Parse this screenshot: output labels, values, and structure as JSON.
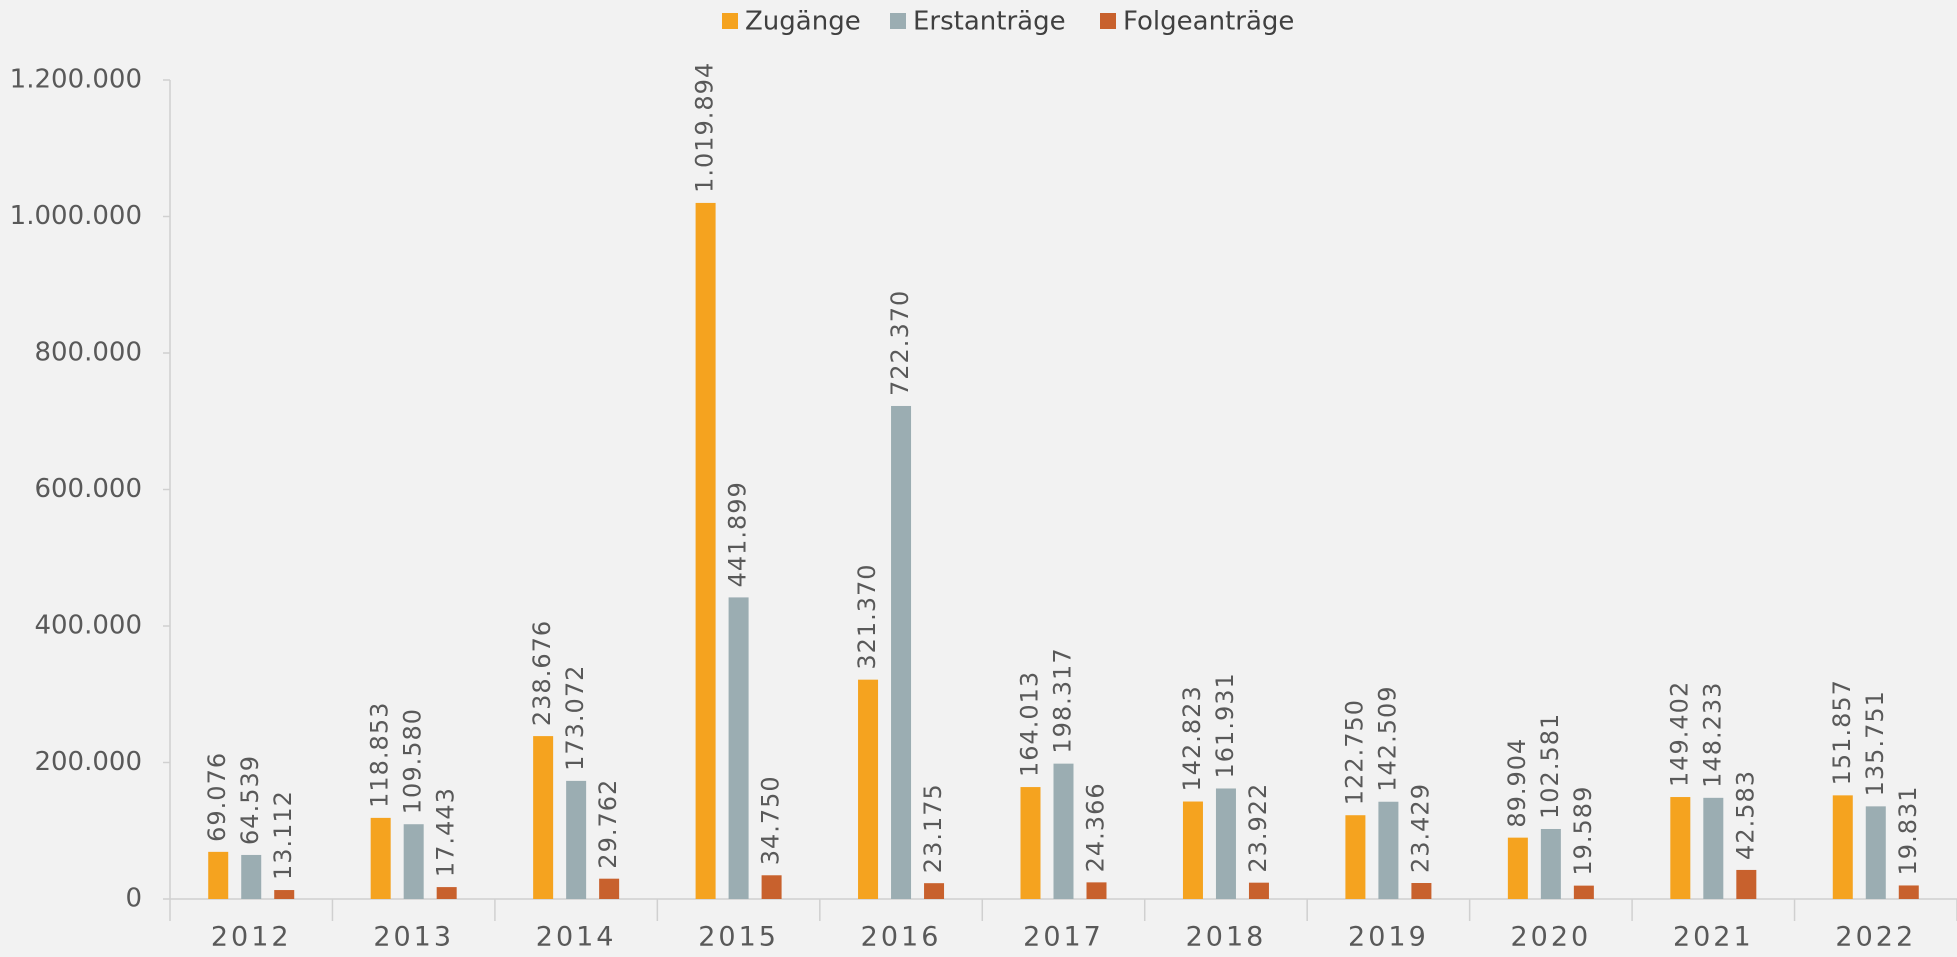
{
  "chart_data": {
    "type": "bar",
    "categories": [
      "2012",
      "2013",
      "2014",
      "2015",
      "2016",
      "2017",
      "2018",
      "2019",
      "2020",
      "2021",
      "2022"
    ],
    "series": [
      {
        "name": "Zugänge",
        "color": "#f5a31f",
        "values": [
          69076,
          118853,
          238676,
          1019894,
          321370,
          164013,
          142823,
          122750,
          89904,
          149402,
          151857
        ],
        "value_labels": [
          "69.076",
          "118.853",
          "238.676",
          "1.019.894",
          "321.370",
          "164.013",
          "142.823",
          "122.750",
          "89.904",
          "149.402",
          "151.857"
        ]
      },
      {
        "name": "Erstanträge",
        "color": "#9badb2",
        "values": [
          64539,
          109580,
          173072,
          441899,
          722370,
          198317,
          161931,
          142509,
          102581,
          148233,
          135751
        ],
        "value_labels": [
          "64.539",
          "109.580",
          "173.072",
          "441.899",
          "722.370",
          "198.317",
          "161.931",
          "142.509",
          "102.581",
          "148.233",
          "135.751"
        ]
      },
      {
        "name": "Folgeanträge",
        "color": "#c8612d",
        "values": [
          13112,
          17443,
          29762,
          34750,
          23175,
          24366,
          23922,
          23429,
          19589,
          42583,
          19831
        ],
        "value_labels": [
          "13.112",
          "17.443",
          "29.762",
          "34.750",
          "23.175",
          "24.366",
          "23.922",
          "23.429",
          "19.589",
          "42.583",
          "19.831"
        ]
      }
    ],
    "ylim": [
      0,
      1200000
    ],
    "yticks": [
      0,
      {
        "value": 200000,
        "label": "200.000"
      },
      {
        "value": 400000,
        "label": "400.000"
      },
      {
        "value": 600000,
        "label": "600.000"
      },
      {
        "value": 800000,
        "label": "800.000"
      },
      {
        "value": 1000000,
        "label": "1.000.000"
      },
      {
        "value": 1200000,
        "label": "1.200.000"
      }
    ],
    "legend": "top"
  }
}
